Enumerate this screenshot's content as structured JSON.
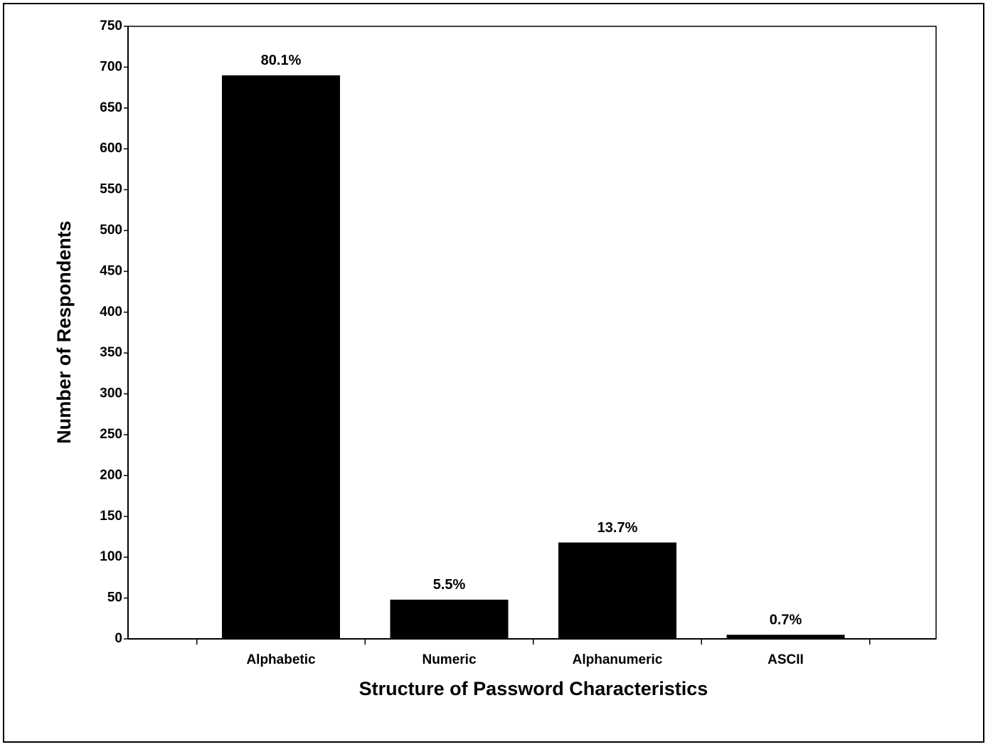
{
  "chart_data": {
    "type": "bar",
    "x_label": "Structure of Password Characteristics",
    "y_label": "Number of Respondents",
    "categories": [
      "Alphabetic",
      "Numeric",
      "Alphanumeric",
      "ASCII"
    ],
    "values": [
      690,
      48,
      118,
      5
    ],
    "annotations": [
      "80.1%",
      "5.5%",
      "13.7%",
      "0.7%"
    ],
    "color": "#000000",
    "ylim": [
      0,
      750
    ],
    "yticks": [
      0,
      50,
      100,
      150,
      200,
      250,
      300,
      350,
      400,
      450,
      500,
      550,
      600,
      650,
      700,
      750
    ],
    "grid": false
  }
}
